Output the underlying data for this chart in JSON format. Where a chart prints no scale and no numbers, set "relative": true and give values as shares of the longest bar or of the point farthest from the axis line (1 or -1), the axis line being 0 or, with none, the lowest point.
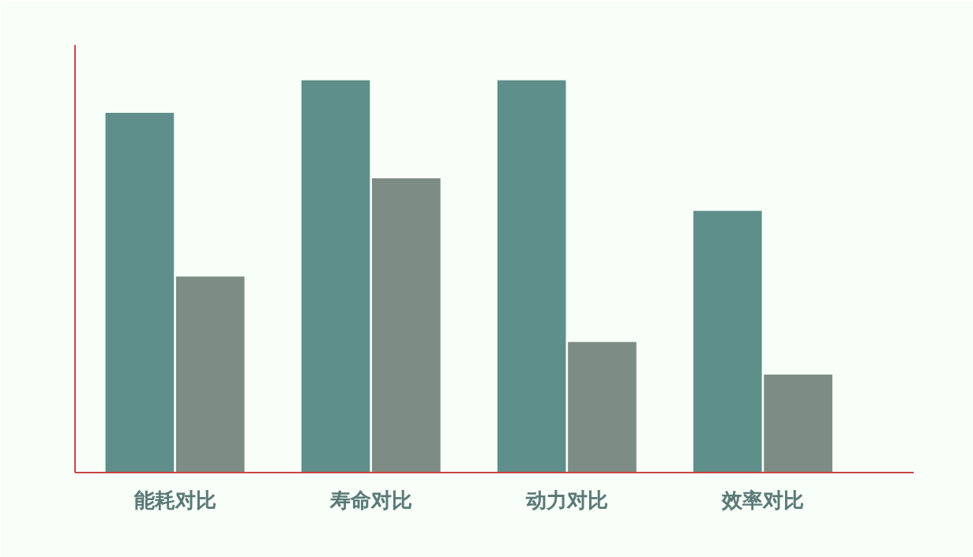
{
  "chart_data": {
    "type": "bar",
    "relative": true,
    "categories": [
      "能耗对比",
      "寿命对比",
      "动力对比",
      "效率对比"
    ],
    "series": [
      {
        "color": "#5f8f8a",
        "values": [
          0.917,
          1,
          1,
          0.667
        ]
      },
      {
        "color": "#7d8c84",
        "values": [
          0.5,
          0.75,
          0.333,
          0.25
        ]
      }
    ]
  }
}
